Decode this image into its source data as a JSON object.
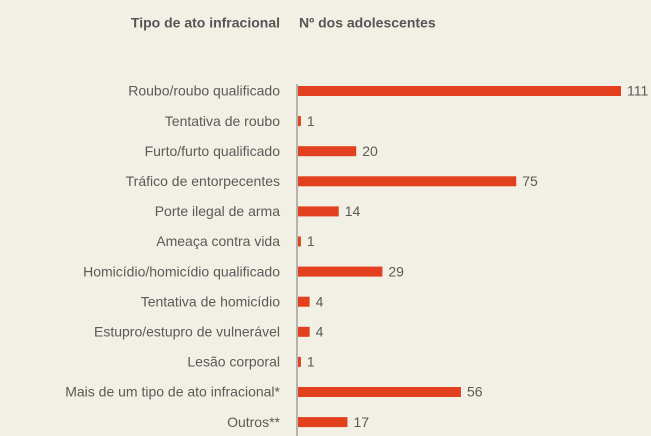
{
  "chart_data": {
    "type": "bar",
    "orientation": "horizontal",
    "category_header": "Tipo de ato infracional",
    "value_header": "Nº dos adolescentes",
    "categories": [
      "Roubo/roubo qualificado",
      "Tentativa de roubo",
      "Furto/furto qualificado",
      "Tráfico de entorpecentes",
      "Porte ilegal de arma",
      "Ameaça contra vida",
      "Homicídio/homicídio qualificado",
      "Tentativa de homicídio",
      "Estupro/estupro de vulnerável",
      "Lesão corporal",
      "Mais de um tipo de ato infracional*",
      "Outros**"
    ],
    "values": [
      111,
      1,
      20,
      75,
      14,
      1,
      29,
      4,
      4,
      1,
      56,
      17
    ],
    "color": "#e2401e"
  }
}
